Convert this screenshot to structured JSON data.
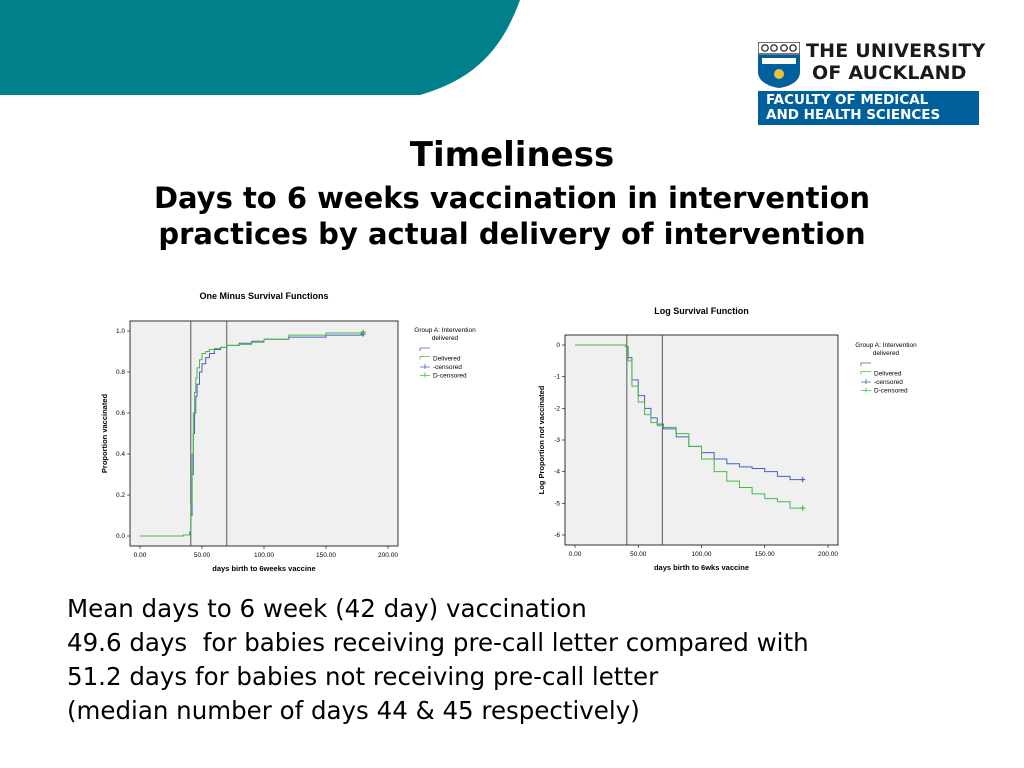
{
  "colors": {
    "teal": "#00808a",
    "series_blue": "#4a5fbf",
    "series_green": "#44bb44",
    "faculty_bg": "#00609c"
  },
  "logo": {
    "line1": "THE UNIVERSITY",
    "line2": "OF AUCKLAND",
    "faculty_line1": "FACULTY OF MEDICAL",
    "faculty_line2": "AND HEALTH SCIENCES"
  },
  "title": "Timeliness",
  "subtitle_line1": "Days to 6 weeks vaccination in intervention",
  "subtitle_line2": "practices by actual delivery of intervention",
  "body_lines": [
    "Mean days to 6 week (42 day) vaccination",
    "49.6 days  for babies receiving pre-call letter compared with",
    "51.2 days for babies not receiving pre-call letter",
    "(median number of days 44 & 45 respectively)"
  ],
  "chart_data": [
    {
      "type": "line",
      "title": "One Minus Survival Functions",
      "xlabel": "days birth to 6weeks vaccine",
      "ylabel": "Proportion vaccinated",
      "xlim": [
        0,
        200
      ],
      "ylim": [
        0,
        1
      ],
      "xticks": [
        "0.00",
        "50.00",
        "100.00",
        "150.00",
        "200.00"
      ],
      "yticks": [
        "0.0",
        "0.2",
        "0.4",
        "0.6",
        "0.8",
        "1.0"
      ],
      "vlines": [
        41,
        70
      ],
      "legend_title_line1": "Group A: Intervention",
      "legend_title_line2": "delivered",
      "legend": [
        "",
        "Delivered",
        "-censored",
        "D-censored"
      ],
      "series": [
        {
          "color": "#4a5fbf",
          "x": [
            0,
            35,
            40,
            41,
            42,
            43,
            44,
            45,
            46,
            48,
            50,
            53,
            56,
            60,
            65,
            70,
            80,
            90,
            100,
            120,
            150,
            180
          ],
          "y": [
            0,
            0.005,
            0.02,
            0.1,
            0.3,
            0.5,
            0.6,
            0.68,
            0.74,
            0.8,
            0.84,
            0.87,
            0.89,
            0.91,
            0.92,
            0.93,
            0.94,
            0.95,
            0.96,
            0.97,
            0.98,
            0.985
          ]
        },
        {
          "color": "#44bb44",
          "x": [
            0,
            35,
            40,
            41,
            42,
            43,
            44,
            45,
            46,
            48,
            50,
            53,
            56,
            60,
            65,
            70,
            80,
            90,
            100,
            120,
            150,
            180
          ],
          "y": [
            0,
            0.005,
            0.02,
            0.15,
            0.4,
            0.6,
            0.7,
            0.77,
            0.82,
            0.86,
            0.89,
            0.9,
            0.91,
            0.915,
            0.92,
            0.93,
            0.935,
            0.945,
            0.96,
            0.98,
            0.99,
            0.995
          ]
        }
      ]
    },
    {
      "type": "line",
      "title": "Log Survival Function",
      "xlabel": "days birth to 6wks vaccine",
      "ylabel": "Log Proportion not vaccinated",
      "xlim": [
        0,
        200
      ],
      "ylim": [
        -6,
        0
      ],
      "xticks": [
        "0.00",
        "50.00",
        "100.00",
        "150.00",
        "200.00"
      ],
      "yticks": [
        "-6",
        "-5",
        "-4",
        "-3",
        "-2",
        "-1",
        "0"
      ],
      "vlines": [
        41,
        69
      ],
      "legend_title_line1": "Group A: Intervention",
      "legend_title_line2": "delivered",
      "legend": [
        "",
        "Delivered",
        "-censored",
        "D-censored"
      ],
      "series": [
        {
          "color": "#4a5fbf",
          "x": [
            0,
            40,
            42,
            45,
            50,
            55,
            60,
            65,
            70,
            80,
            90,
            100,
            110,
            120,
            130,
            140,
            150,
            160,
            170,
            180
          ],
          "y": [
            0,
            -0.05,
            -0.4,
            -1.1,
            -1.6,
            -2.0,
            -2.3,
            -2.5,
            -2.65,
            -2.9,
            -3.2,
            -3.4,
            -3.6,
            -3.75,
            -3.85,
            -3.9,
            -4.0,
            -4.15,
            -4.25,
            -4.25
          ]
        },
        {
          "color": "#44bb44",
          "x": [
            0,
            40,
            42,
            45,
            50,
            55,
            60,
            65,
            70,
            80,
            90,
            100,
            110,
            120,
            130,
            140,
            150,
            160,
            170,
            180
          ],
          "y": [
            0,
            -0.05,
            -0.5,
            -1.3,
            -1.8,
            -2.2,
            -2.45,
            -2.55,
            -2.6,
            -2.8,
            -3.2,
            -3.6,
            -4.0,
            -4.3,
            -4.5,
            -4.7,
            -4.85,
            -4.95,
            -5.15,
            -5.15
          ]
        }
      ]
    }
  ]
}
